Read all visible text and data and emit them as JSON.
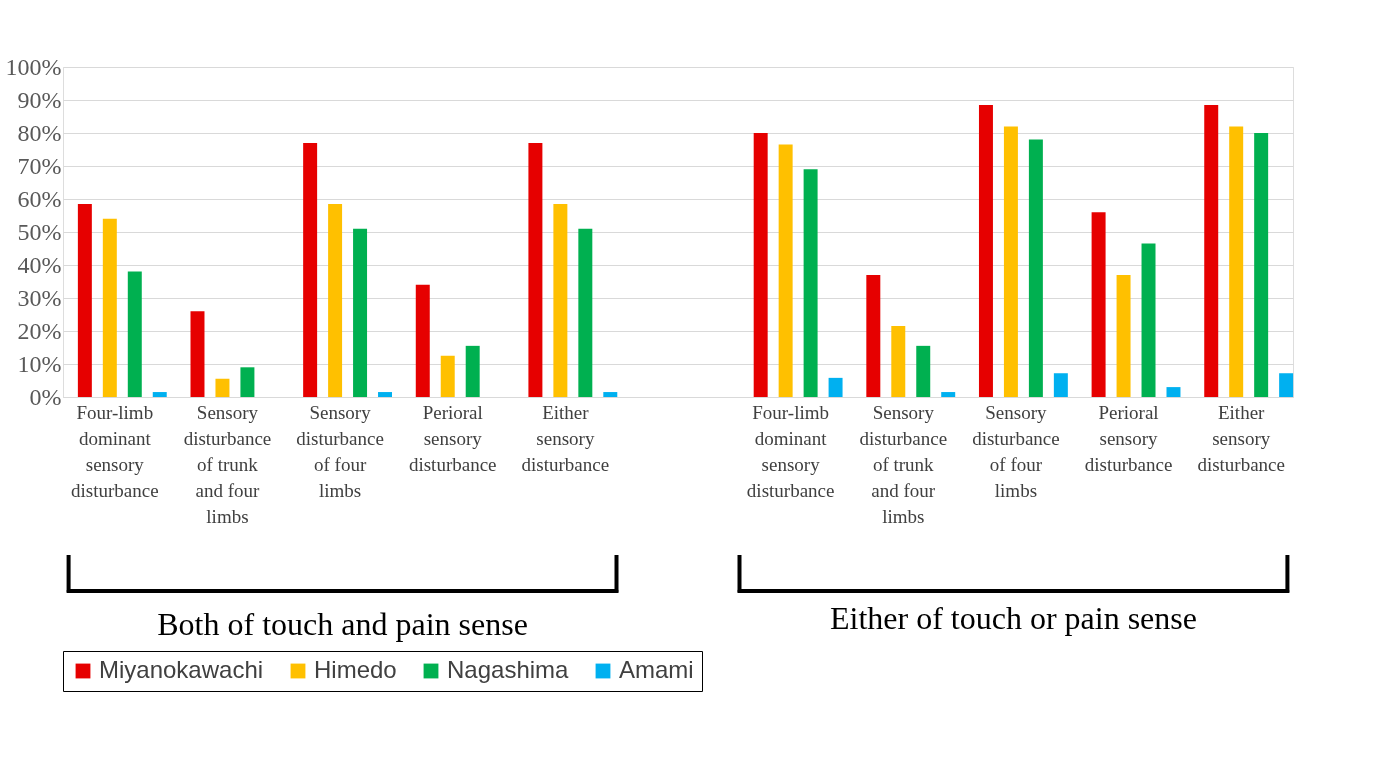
{
  "chart_data": {
    "type": "bar",
    "categories": [
      "Four-limb dominant sensory disturbance",
      "Sensory disturbance of trunk and four limbs",
      "Sensory disturbance of four limbs",
      "Perioral sensory disturbance",
      "Either sensory disturbance",
      null,
      "Four-limb dominant sensory disturbance",
      "Sensory disturbance of trunk and four limbs",
      "Sensory disturbance of four limbs",
      "Perioral sensory disturbance",
      "Either sensory disturbance"
    ],
    "series": [
      {
        "name": "Miyanokawachi",
        "color": "#e60000",
        "values": [
          58.5,
          26,
          77,
          34,
          77,
          null,
          80,
          37,
          88.5,
          56,
          88.5
        ]
      },
      {
        "name": "Himedo",
        "color": "#ffc000",
        "values": [
          54,
          5.5,
          58.5,
          12.5,
          58.5,
          null,
          76.5,
          21.5,
          82,
          37,
          82
        ]
      },
      {
        "name": "Nagashima",
        "color": "#00b050",
        "values": [
          38,
          9,
          51,
          15.5,
          51,
          null,
          69,
          15.5,
          78,
          46.5,
          80
        ]
      },
      {
        "name": "Amami",
        "color": "#00b0f0",
        "values": [
          1.5,
          0,
          1.5,
          0,
          1.5,
          null,
          5.8,
          1.5,
          7.2,
          3,
          7.2
        ]
      }
    ],
    "ylim": [
      0,
      100
    ],
    "yticks": [
      {
        "value": 0,
        "label": "0%"
      },
      {
        "value": 10,
        "label": "10%"
      },
      {
        "value": 20,
        "label": "20%"
      },
      {
        "value": 30,
        "label": "30%"
      },
      {
        "value": 40,
        "label": "40%"
      },
      {
        "value": 50,
        "label": "50%"
      },
      {
        "value": 60,
        "label": "60%"
      },
      {
        "value": 70,
        "label": "70%"
      },
      {
        "value": 80,
        "label": "80%"
      },
      {
        "value": 90,
        "label": "90%"
      },
      {
        "value": 100,
        "label": "100%"
      }
    ],
    "grid": "y",
    "legend": "bottom",
    "annotations": [
      "Both of touch and pain sense",
      "Either of touch or pain sense"
    ]
  }
}
